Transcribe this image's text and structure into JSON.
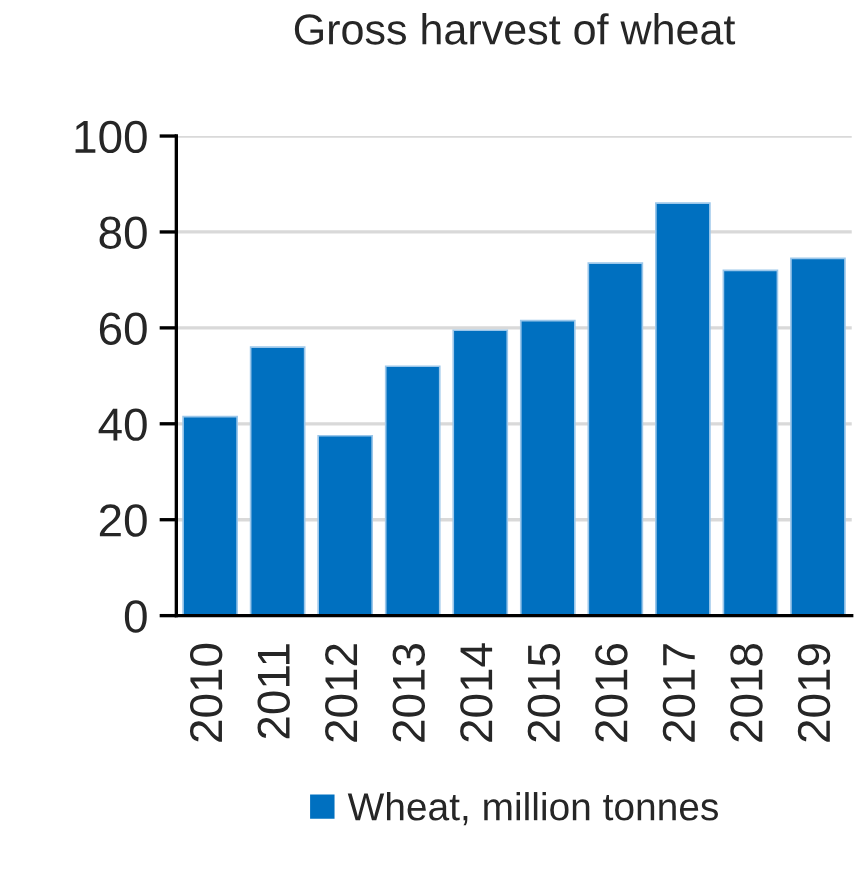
{
  "chart_data": {
    "type": "bar",
    "title": "Gross harvest of wheat",
    "categories": [
      "2010",
      "2011",
      "2012",
      "2013",
      "2014",
      "2015",
      "2016",
      "2017",
      "2018",
      "2019"
    ],
    "series": [
      {
        "name": "Wheat, million tonnes",
        "color": "#0070c0",
        "values": [
          41.5,
          56,
          37.5,
          52,
          59.5,
          61.5,
          73.5,
          86,
          72,
          74.5
        ]
      }
    ],
    "ylim": [
      0,
      100
    ],
    "yticks": [
      0,
      20,
      40,
      60,
      80,
      100
    ],
    "grid": "y",
    "legend": "bottom"
  }
}
